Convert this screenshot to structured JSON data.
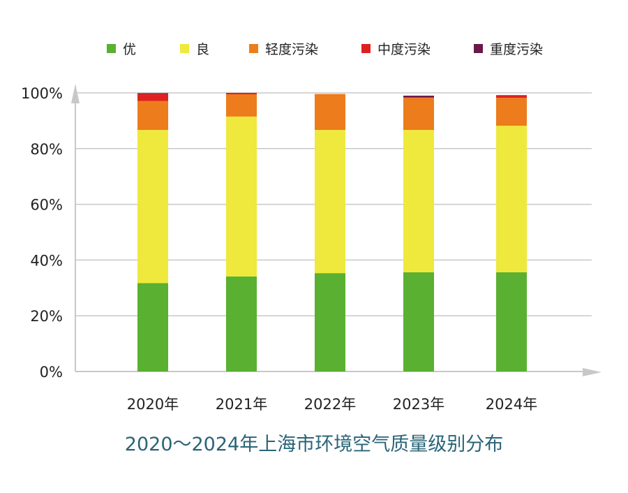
{
  "chart_data": {
    "type": "bar",
    "stacked": true,
    "title": "2020～2024年上海市环境空气质量级别分布",
    "categories": [
      "2020年",
      "2021年",
      "2022年",
      "2023年",
      "2024年"
    ],
    "ylim": [
      0,
      100
    ],
    "yticks": [
      "0%",
      "20%",
      "40%",
      "60%",
      "80%",
      "100%"
    ],
    "legend_position": "top",
    "grid": true,
    "series": [
      {
        "name": "优",
        "color": "#5ab030",
        "values": [
          31.7,
          34.1,
          35.3,
          35.6,
          35.6
        ]
      },
      {
        "name": "良",
        "color": "#eee93c",
        "values": [
          55.0,
          57.4,
          51.4,
          51.1,
          52.6
        ]
      },
      {
        "name": "轻度污染",
        "color": "#ec7c1c",
        "values": [
          10.4,
          8.0,
          12.9,
          11.5,
          10.0
        ]
      },
      {
        "name": "中度污染",
        "color": "#e02020",
        "values": [
          2.5,
          0.5,
          0,
          0.3,
          1.0
        ]
      },
      {
        "name": "重度污染",
        "color": "#6a1a4a",
        "values": [
          0.3,
          0,
          0,
          0.5,
          0
        ]
      }
    ]
  }
}
